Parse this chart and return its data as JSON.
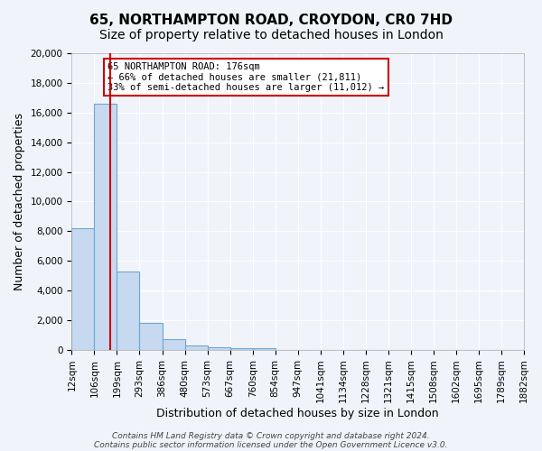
{
  "title": "65, NORTHAMPTON ROAD, CROYDON, CR0 7HD",
  "subtitle": "Size of property relative to detached houses in London",
  "xlabel": "Distribution of detached houses by size in London",
  "ylabel": "Number of detached properties",
  "bin_labels": [
    "12sqm",
    "106sqm",
    "199sqm",
    "293sqm",
    "386sqm",
    "480sqm",
    "573sqm",
    "667sqm",
    "760sqm",
    "854sqm",
    "947sqm",
    "1041sqm",
    "1134sqm",
    "1228sqm",
    "1321sqm",
    "1415sqm",
    "1508sqm",
    "1602sqm",
    "1695sqm",
    "1789sqm",
    "1882sqm"
  ],
  "bar_values": [
    8200,
    16600,
    5300,
    1800,
    750,
    300,
    200,
    150,
    100,
    0,
    0,
    0,
    0,
    0,
    0,
    0,
    0,
    0,
    0,
    0
  ],
  "bar_color": "#c6d9f0",
  "bar_edge_color": "#6ea6d0",
  "vline_x": 1.7,
  "vline_color": "#cc0000",
  "annotation_title": "65 NORTHAMPTON ROAD: 176sqm",
  "annotation_line2": "← 66% of detached houses are smaller (21,811)",
  "annotation_line3": "33% of semi-detached houses are larger (11,012) →",
  "annotation_box_color": "#cc0000",
  "ylim": [
    0,
    20000
  ],
  "yticks": [
    0,
    2000,
    4000,
    6000,
    8000,
    10000,
    12000,
    14000,
    16000,
    18000,
    20000
  ],
  "footer1": "Contains HM Land Registry data © Crown copyright and database right 2024.",
  "footer2": "Contains public sector information licensed under the Open Government Licence v3.0.",
  "bg_color": "#f0f4fa",
  "grid_color": "#ffffff",
  "title_fontsize": 11,
  "subtitle_fontsize": 10,
  "axis_label_fontsize": 9,
  "tick_fontsize": 7.5
}
